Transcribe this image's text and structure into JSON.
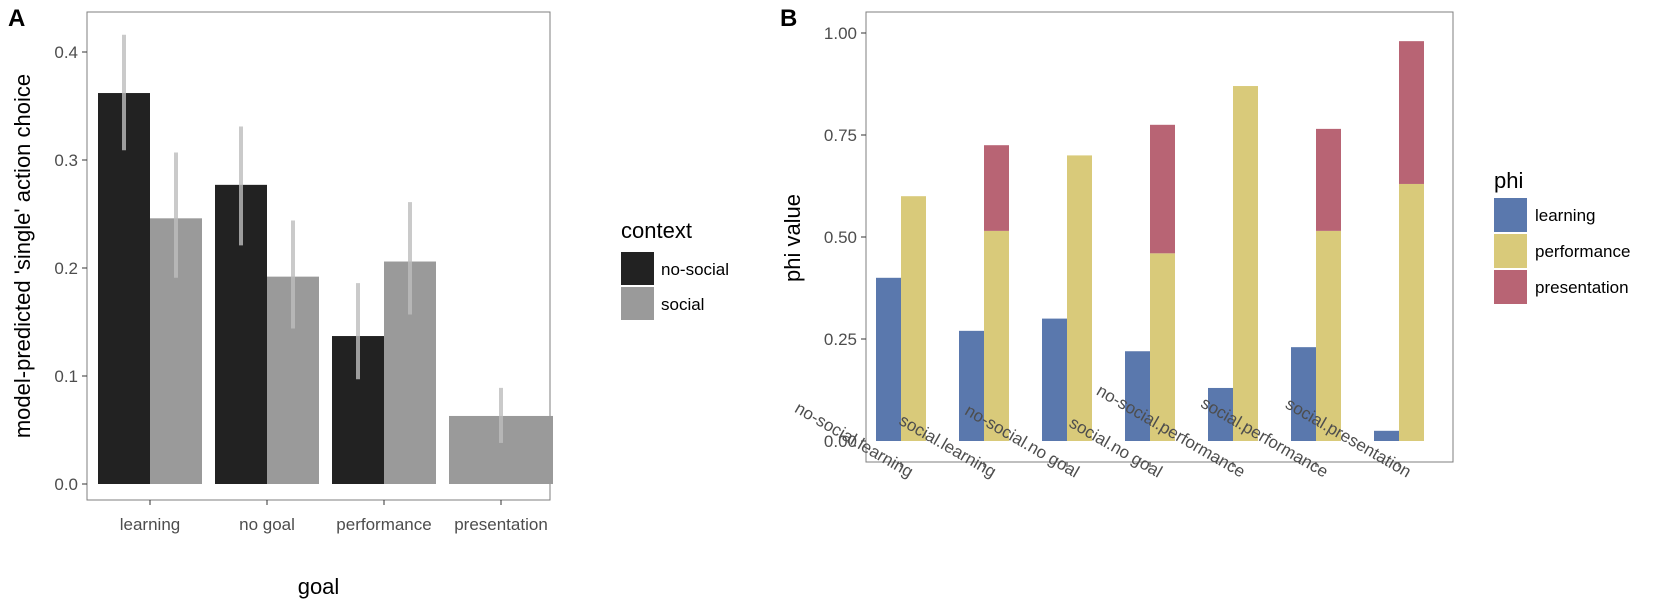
{
  "chart_data": [
    {
      "panel_label": "A",
      "type": "bar",
      "xlabel": "goal",
      "ylabel": "model-predicted 'single' action choice",
      "ylim": [
        0,
        0.43
      ],
      "yticks": [
        "0.0",
        "0.1",
        "0.2",
        "0.3",
        "0.4"
      ],
      "ytick_values": [
        0,
        0.1,
        0.2,
        0.3,
        0.4
      ],
      "categories": [
        "learning",
        "no goal",
        "performance",
        "presentation"
      ],
      "legend": {
        "title": "context",
        "placement": "right"
      },
      "series": [
        {
          "name": "no-social",
          "color": "#222222",
          "values": [
            0.362,
            0.277,
            0.137,
            null
          ],
          "err_low": [
            0.309,
            0.221,
            0.097,
            null
          ],
          "err_high": [
            0.416,
            0.331,
            0.186,
            null
          ]
        },
        {
          "name": "social",
          "color": "#9a9a9a",
          "values": [
            0.246,
            0.192,
            0.206,
            0.063
          ],
          "err_low": [
            0.191,
            0.144,
            0.157,
            0.038
          ],
          "err_high": [
            0.307,
            0.244,
            0.261,
            0.089
          ]
        }
      ],
      "errorbar_color": "#bdbdbd"
    },
    {
      "panel_label": "B",
      "type": "bar",
      "stacked_second": true,
      "xlabel": "",
      "ylabel": "phi value",
      "ylim": [
        0,
        1.05
      ],
      "yticks": [
        "0.00",
        "0.25",
        "0.50",
        "0.75",
        "1.00"
      ],
      "ytick_values": [
        0,
        0.25,
        0.5,
        0.75,
        1.0
      ],
      "categories": [
        "no-social.learning",
        "social.learning",
        "no-social.no goal",
        "social.no goal",
        "no-social.performance",
        "social.performance",
        "social.presentation"
      ],
      "legend": {
        "title": "phi",
        "placement": "right"
      },
      "series": [
        {
          "name": "learning",
          "color": "#5a78ad",
          "values": [
            0.4,
            0.27,
            0.3,
            0.22,
            0.13,
            0.23,
            0.025
          ]
        },
        {
          "name": "performance",
          "color": "#d9ca7a",
          "values": [
            0.6,
            0.515,
            0.7,
            0.46,
            0.87,
            0.515,
            0.63
          ]
        },
        {
          "name": "presentation",
          "color": "#b86474",
          "values": [
            0,
            0.21,
            0,
            0.315,
            0,
            0.25,
            0.35
          ]
        }
      ]
    }
  ]
}
